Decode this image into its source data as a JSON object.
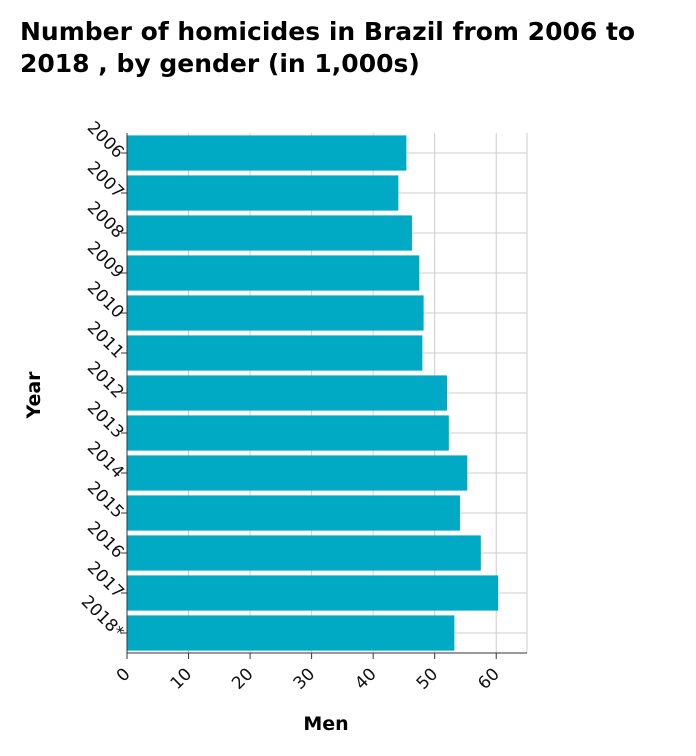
{
  "chart_data": {
    "type": "bar",
    "orientation": "horizontal",
    "title": "Number of homicides in Brazil from 2006 to 2018 , by gender (in 1,000s)",
    "xlabel": "Men",
    "ylabel": "Year",
    "categories": [
      "2006",
      "2007",
      "2008",
      "2009",
      "2010",
      "2011",
      "2012",
      "2013",
      "2014",
      "2015",
      "2016",
      "2017",
      "2018*"
    ],
    "values": [
      45.4,
      44.1,
      46.3,
      47.5,
      48.2,
      48.0,
      52.0,
      52.3,
      55.3,
      54.1,
      57.5,
      60.3,
      53.2
    ],
    "xlim": [
      0,
      65
    ],
    "xticks": [
      0,
      10,
      20,
      30,
      40,
      50,
      60
    ],
    "grid": true,
    "bar_color": "#00aac4"
  }
}
